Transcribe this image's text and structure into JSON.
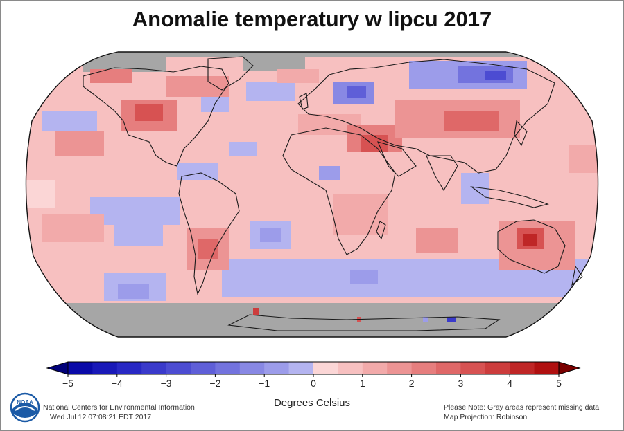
{
  "title": "Anomalie temperatury w lipcu 2017",
  "colorbar": {
    "unit_label": "Degrees Celsius",
    "ticks": [
      "−5",
      "−4",
      "−3",
      "−2",
      "−1",
      "0",
      "1",
      "2",
      "3",
      "4",
      "5"
    ],
    "range": [
      -5,
      5
    ],
    "steps": 20,
    "neg_colors": [
      "#0a0aa8",
      "#1919b8",
      "#2828c4",
      "#3a3acb",
      "#4c4cd2",
      "#5f5fd8",
      "#7373de",
      "#8888e4",
      "#9c9cea",
      "#b4b4f0"
    ],
    "pos_colors": [
      "#fbd6d6",
      "#f7c0c0",
      "#f2aaaa",
      "#ec9494",
      "#e67e7e",
      "#df6868",
      "#d75252",
      "#cc3c3c",
      "#bf2626",
      "#b01010"
    ]
  },
  "map": {
    "projection_note": "Map Projection: Robinson",
    "missing_color": "#a6a6a6",
    "ocean_base_color": "#f7c0c0",
    "land_outline_color": "#1a1a1a"
  },
  "footer": {
    "org": "National Centers for Environmental Information",
    "timestamp": "Wed Jul 12 07:08:21 EDT 2017",
    "note": "Please Note: Gray areas represent missing data",
    "projection": "Map Projection: Robinson",
    "logo_text": "NOAA"
  }
}
